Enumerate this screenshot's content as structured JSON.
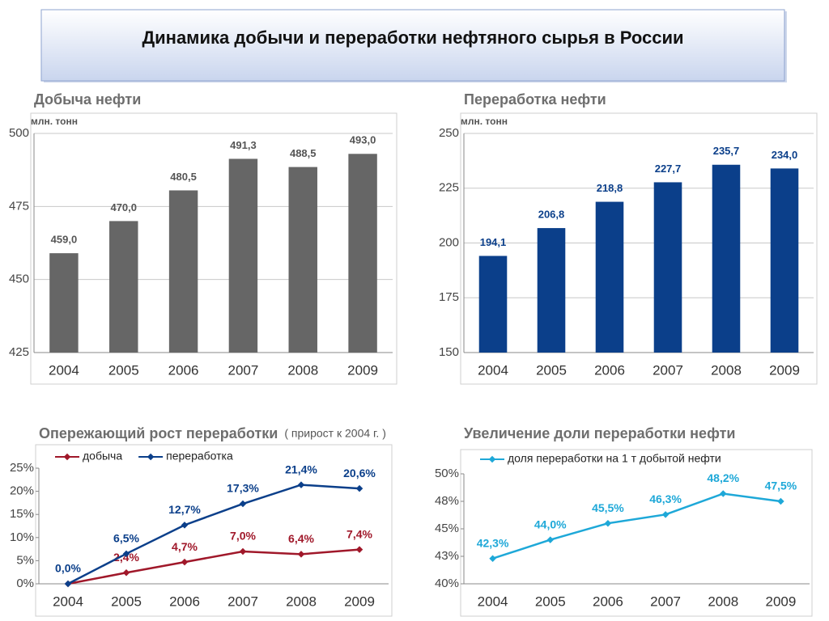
{
  "title": "Динамика добычи и переработки нефтяного сырья в России",
  "chart_data": [
    {
      "type": "bar",
      "title": "Добыча нефти",
      "y_label": "млн. тонн",
      "categories": [
        "2004",
        "2005",
        "2006",
        "2007",
        "2008",
        "2009"
      ],
      "values": [
        459.0,
        470.0,
        480.5,
        491.3,
        488.5,
        493.0
      ],
      "value_labels": [
        "459,0",
        "470,0",
        "480,5",
        "491,3",
        "488,5",
        "493,0"
      ],
      "color": "#666666",
      "ylim": [
        425,
        500
      ],
      "yticks": [
        425,
        450,
        475,
        500
      ],
      "grid": true
    },
    {
      "type": "bar",
      "title": "Переработка нефти",
      "y_label": "млн. тонн",
      "categories": [
        "2004",
        "2005",
        "2006",
        "2007",
        "2008",
        "2009"
      ],
      "values": [
        194.1,
        206.8,
        218.8,
        227.7,
        235.7,
        234.0
      ],
      "value_labels": [
        "194,1",
        "206,8",
        "218,8",
        "227,7",
        "235,7",
        "234,0"
      ],
      "color": "#0b3f8a",
      "ylim": [
        150,
        250
      ],
      "yticks": [
        150,
        175,
        200,
        225,
        250
      ],
      "grid": true
    },
    {
      "type": "line",
      "title": "Опережающий рост переработки",
      "subtitle": "( прирост к 2004 г. )",
      "categories": [
        "2004",
        "2005",
        "2006",
        "2007",
        "2008",
        "2009"
      ],
      "series": [
        {
          "name": "добыча",
          "color": "#a0182a",
          "values": [
            0.0,
            2.4,
            4.7,
            7.0,
            6.4,
            7.4
          ],
          "value_labels": [
            null,
            "2,4%",
            "4,7%",
            "7,0%",
            "6,4%",
            "7,4%"
          ]
        },
        {
          "name": "переработка",
          "color": "#0b3f8a",
          "values": [
            0.0,
            6.5,
            12.7,
            17.3,
            21.4,
            20.6
          ],
          "value_labels": [
            "0,0%",
            "6,5%",
            "12,7%",
            "17,3%",
            "21,4%",
            "20,6%"
          ]
        }
      ],
      "ylim": [
        0,
        25
      ],
      "yticks": [
        {
          "value": 0,
          "label": "0%"
        },
        {
          "value": 5,
          "label": "5%"
        },
        {
          "value": 10,
          "label": "10%"
        },
        {
          "value": 15,
          "label": "15%"
        },
        {
          "value": 20,
          "label": "20%"
        },
        {
          "value": 25,
          "label": "25%"
        }
      ],
      "grid": false
    },
    {
      "type": "line",
      "title": "Увеличение доли переработки нефти",
      "categories": [
        "2004",
        "2005",
        "2006",
        "2007",
        "2008",
        "2009"
      ],
      "series": [
        {
          "name": "доля переработки на 1 т добытой нефти",
          "color": "#1ea8d8",
          "values": [
            42.3,
            44.0,
            45.5,
            46.3,
            48.2,
            47.5
          ],
          "value_labels": [
            "42,3%",
            "44,0%",
            "45,5%",
            "46,3%",
            "48,2%",
            "47,5%"
          ]
        }
      ],
      "ylim": [
        40,
        50
      ],
      "yticks": [
        {
          "value": 40,
          "label": "40%"
        },
        {
          "value": 42.5,
          "label": "43%"
        },
        {
          "value": 45,
          "label": "45%"
        },
        {
          "value": 47.5,
          "label": "48%"
        },
        {
          "value": 50,
          "label": "50%"
        }
      ],
      "grid": false
    }
  ]
}
